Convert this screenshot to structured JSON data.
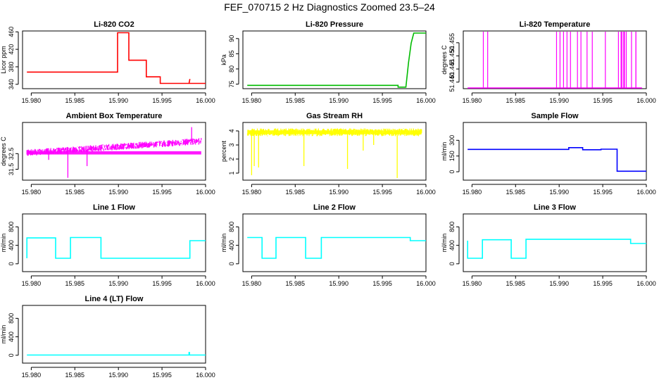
{
  "figure": {
    "title": "FEF_070715  2 Hz Diagnostics Zoomed 23.5–24"
  },
  "chart_data": [
    {
      "type": "line",
      "title": "Li-820 CO2",
      "xlabel": "",
      "ylabel": "Licor ppm",
      "color": "#ff0000",
      "xlim": [
        15.979,
        16.0
      ],
      "ylim": [
        330,
        462
      ],
      "yticks": [
        340,
        380,
        420,
        460
      ],
      "ytick_labels": [
        "340",
        "380",
        "420",
        "460"
      ],
      "xticks": [
        15.98,
        15.985,
        15.99,
        15.995,
        16.0
      ],
      "xtick_labels": [
        "15.980",
        "15.985",
        "15.990",
        "15.995",
        "16.000"
      ],
      "series": [
        {
          "x": [
            15.9795,
            15.9899,
            15.9899,
            15.9912,
            15.9912,
            15.9932,
            15.9932,
            15.9948,
            15.9948,
            15.9981,
            15.9982,
            15.9981,
            16.0
          ],
          "y": [
            368,
            368,
            458,
            458,
            395,
            395,
            357,
            357,
            342,
            342,
            352,
            342,
            342
          ]
        }
      ]
    },
    {
      "type": "line",
      "title": "Li-820 Pressure",
      "xlabel": "",
      "ylabel": "kPa",
      "color": "#00bb00",
      "xlim": [
        15.979,
        16.0
      ],
      "ylim": [
        73.5,
        92.5
      ],
      "yticks": [
        75,
        80,
        85,
        90
      ],
      "ytick_labels": [
        "75",
        "80",
        "85",
        "90"
      ],
      "xticks": [
        15.98,
        15.985,
        15.99,
        15.995,
        16.0
      ],
      "xtick_labels": [
        "15.980",
        "15.985",
        "15.990",
        "15.995",
        "16.000"
      ],
      "series": [
        {
          "x": [
            15.9795,
            15.9968,
            15.9968,
            15.9977,
            15.998,
            15.9983,
            15.9986,
            16.0
          ],
          "y": [
            74.6,
            74.6,
            74.0,
            74.0,
            82.0,
            88.5,
            91.8,
            91.8
          ]
        }
      ]
    },
    {
      "type": "line",
      "title": "Li-820 Temperature",
      "xlabel": "",
      "ylabel": "degrees C",
      "color": "#ff00ff",
      "xlim": [
        15.979,
        16.0
      ],
      "ylim": [
        51.4375,
        51.4595
      ],
      "yticks": [
        51.44,
        51.445,
        51.45,
        51.455
      ],
      "ytick_labels": [
        "51.440",
        "51.445",
        "51.450",
        "51.455"
      ],
      "xticks": [
        15.98,
        15.985,
        15.99,
        15.995,
        16.0
      ],
      "xtick_labels": [
        "15.980",
        "15.985",
        "15.990",
        "15.995",
        "16.000"
      ],
      "baseline": 51.4375,
      "spike_value": 51.4595,
      "spikes": [
        15.9813,
        15.9818,
        15.9971,
        15.9975,
        15.9983,
        15.9988,
        15.9897,
        15.9901,
        15.9905,
        15.9909,
        15.9913,
        15.9921,
        15.9925,
        15.9932,
        15.9938,
        15.9953,
        15.9968,
        15.9972,
        15.9974,
        15.9977,
        15.9988
      ]
    },
    {
      "type": "line",
      "title": "Ambient Box Temperature",
      "xlabel": "",
      "ylabel": "degrees C",
      "color": "#ff00ff",
      "xlim": [
        15.979,
        16.0
      ],
      "ylim": [
        30.8,
        34.5
      ],
      "yticks": [
        31.5,
        32.5
      ],
      "ytick_labels": [
        "31.5",
        "32.5"
      ],
      "xticks": [
        15.98,
        15.985,
        15.99,
        15.995,
        16.0
      ],
      "xtick_labels": [
        "15.980",
        "15.985",
        "15.990",
        "15.995",
        "16.000"
      ],
      "noise": {
        "start": 32.55,
        "end": 33.3,
        "band": 0.42,
        "seed": 7
      },
      "dips": [
        {
          "x": 15.9842,
          "y": 30.95
        },
        {
          "x": 15.9864,
          "y": 31.7
        },
        {
          "x": 15.982,
          "y": 32.1
        },
        {
          "x": 15.9984,
          "y": 34.2
        }
      ]
    },
    {
      "type": "line",
      "title": "Gas Stream RH",
      "xlabel": "",
      "ylabel": "percent",
      "color": "#ffff00",
      "xlim": [
        15.979,
        16.0
      ],
      "ylim": [
        0.5,
        4.6
      ],
      "yticks": [
        1,
        2,
        3,
        4
      ],
      "ytick_labels": [
        "1",
        "2",
        "3",
        "4"
      ],
      "xticks": [
        15.98,
        15.985,
        15.99,
        15.995,
        16.0
      ],
      "xtick_labels": [
        "15.980",
        "15.985",
        "15.990",
        "15.995",
        "16.000"
      ],
      "noise": {
        "start": 3.9,
        "end": 3.9,
        "band": 0.55,
        "seed": 11
      },
      "dips": [
        {
          "x": 15.98,
          "y": 0.85
        },
        {
          "x": 15.9803,
          "y": 1.5
        },
        {
          "x": 15.9808,
          "y": 1.4
        },
        {
          "x": 15.986,
          "y": 1.5
        },
        {
          "x": 15.991,
          "y": 1.3
        },
        {
          "x": 15.9928,
          "y": 2.6
        },
        {
          "x": 15.9967,
          "y": 0.65
        },
        {
          "x": 15.994,
          "y": 3.0
        }
      ]
    },
    {
      "type": "line",
      "title": "Sample Flow",
      "xlabel": "",
      "ylabel": "ml/min",
      "color": "#0000ff",
      "xlim": [
        15.979,
        16.0
      ],
      "ylim": [
        -80,
        470
      ],
      "yticks": [
        0,
        150,
        300
      ],
      "ytick_labels": [
        "0",
        "150",
        "300"
      ],
      "xticks": [
        15.98,
        15.985,
        15.99,
        15.995,
        16.0
      ],
      "xtick_labels": [
        "15.980",
        "15.985",
        "15.990",
        "15.995",
        "16.000"
      ],
      "series": [
        {
          "x": [
            15.9795,
            15.9911,
            15.9911,
            15.9927,
            15.9927,
            15.9948,
            15.9948,
            15.99665,
            15.99665,
            16.0
          ],
          "y": [
            213,
            213,
            230,
            230,
            210,
            210,
            215,
            215,
            5,
            5
          ]
        }
      ]
    },
    {
      "type": "line",
      "title": "Line 1 Flow",
      "xlabel": "",
      "ylabel": "ml/min",
      "color": "#00ffff",
      "xlim": [
        15.979,
        16.0
      ],
      "ylim": [
        -170,
        1080
      ],
      "yticks": [
        0,
        400,
        800
      ],
      "ytick_labels": [
        "0",
        "400",
        "800"
      ],
      "xticks": [
        15.98,
        15.985,
        15.99,
        15.995,
        16.0
      ],
      "xtick_labels": [
        "15.980",
        "15.985",
        "15.990",
        "15.995",
        "16.000"
      ],
      "series": [
        {
          "x": [
            15.9795,
            15.9795,
            15.9828,
            15.9828,
            15.9845,
            15.9845,
            15.988,
            15.988,
            15.9982,
            15.9982,
            16.0
          ],
          "y": [
            120,
            560,
            560,
            120,
            120,
            570,
            570,
            120,
            120,
            500,
            500
          ]
        }
      ]
    },
    {
      "type": "line",
      "title": "Line 2 Flow",
      "xlabel": "",
      "ylabel": "ml/min",
      "color": "#00ffff",
      "xlim": [
        15.979,
        16.0
      ],
      "ylim": [
        -170,
        1080
      ],
      "yticks": [
        0,
        400,
        800
      ],
      "ytick_labels": [
        "0",
        "400",
        "800"
      ],
      "xticks": [
        15.98,
        15.985,
        15.99,
        15.995,
        16.0
      ],
      "xtick_labels": [
        "15.980",
        "15.985",
        "15.990",
        "15.995",
        "16.000"
      ],
      "series": [
        {
          "x": [
            15.9795,
            15.9812,
            15.9812,
            15.9828,
            15.9828,
            15.9862,
            15.9862,
            15.988,
            15.988,
            15.9982,
            15.9982,
            16.0
          ],
          "y": [
            570,
            570,
            120,
            120,
            570,
            570,
            120,
            120,
            570,
            570,
            500,
            500
          ]
        }
      ]
    },
    {
      "type": "line",
      "title": "Line 3 Flow",
      "xlabel": "",
      "ylabel": "ml/min",
      "color": "#00ffff",
      "xlim": [
        15.979,
        16.0
      ],
      "ylim": [
        -170,
        1080
      ],
      "yticks": [
        0,
        400,
        800
      ],
      "ytick_labels": [
        "0",
        "400",
        "800"
      ],
      "xticks": [
        15.98,
        15.985,
        15.99,
        15.995,
        16.0
      ],
      "xtick_labels": [
        "15.980",
        "15.985",
        "15.990",
        "15.995",
        "16.000"
      ],
      "series": [
        {
          "x": [
            15.9795,
            15.9795,
            15.9812,
            15.9812,
            15.9845,
            15.9845,
            15.9862,
            15.9862,
            15.9982,
            15.9982,
            16.0
          ],
          "y": [
            500,
            120,
            120,
            520,
            520,
            120,
            120,
            530,
            530,
            440,
            440
          ]
        }
      ]
    },
    {
      "type": "line",
      "title": "Line 4 (LT) Flow",
      "xlabel": "",
      "ylabel": "ml/min",
      "color": "#00ffff",
      "xlim": [
        15.979,
        16.0
      ],
      "ylim": [
        -170,
        1080
      ],
      "yticks": [
        0,
        400,
        800
      ],
      "ytick_labels": [
        "0",
        "400",
        "800"
      ],
      "xticks": [
        15.98,
        15.985,
        15.99,
        15.995,
        16.0
      ],
      "xtick_labels": [
        "15.980",
        "15.985",
        "15.990",
        "15.995",
        "16.000"
      ],
      "series": [
        {
          "x": [
            15.9795,
            15.9981,
            15.9981,
            15.99815,
            15.99815,
            16.0
          ],
          "y": [
            5,
            5,
            60,
            60,
            5,
            5
          ]
        }
      ]
    }
  ]
}
